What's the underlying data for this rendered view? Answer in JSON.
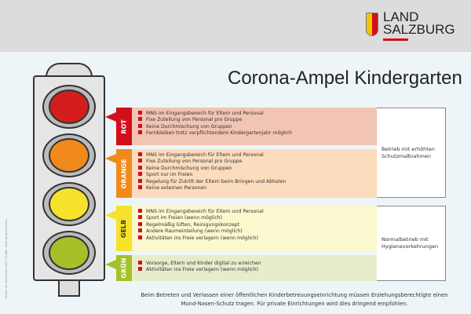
{
  "logo": {
    "line1": "LAND",
    "line2": "SALZBURG"
  },
  "title": "Corona-Ampel Kindergarten",
  "levels": [
    {
      "label": "ROT",
      "color": "#d10f1b",
      "bg": "#f2c4b3",
      "items": [
        "MNS im Eingangsbereich für Eltern und Personal",
        "Fixe Zuteilung von Personal pro Gruppe",
        "Keine Durchmischung von Gruppen",
        "Fernbleiben trotz verpflichtendem Kindergartenjahr möglich"
      ]
    },
    {
      "label": "ORANGE",
      "color": "#f08a1c",
      "bg": "#fbdcbd",
      "items": [
        "MNS im Eingangsbereich für Eltern und Personal",
        "Fixe Zuteilung von Personal pro Gruppe",
        "Keine Durchmischung von Gruppen",
        "Sport nur im Freien",
        "Regelung für Zutritt der Eltern beim Bringen und Abholen",
        "Keine externen Personen"
      ]
    },
    {
      "label": "GELB",
      "color": "#f6e22b",
      "bg": "#fbf7cf",
      "items": [
        "MNS im Eingangsbereich für Eltern und Personal",
        "Sport im Freien (wenn möglich)",
        "Regelmäßig lüften, Reinigungskonzept",
        "Andere Raumeinteilung (wenn möglich)",
        "Aktivitäten ins Freie verlagern (wenn möglich)"
      ]
    },
    {
      "label": "GRÜN",
      "color": "#a6c02a",
      "bg": "#e6edcb",
      "items": [
        "Vorsorge, Eltern und Kinder digital zu erreichen",
        "Aktivitäten ins Freie verlagern (wenn möglich)"
      ]
    }
  ],
  "side_notes": [
    "Betrieb mit erhöhten Schutzmaßnahmen",
    "Normalbetrieb mit Hygienevorkehrungen"
  ],
  "source": "Stand: 10. September 2020 | Grafik: Bildungsministerium",
  "footer": {
    "line1": "Beim Betreten und Verlassen einer öffentlichen Kinderbetreuungseinrichtung müssen Erziehungsberechtigte einen",
    "line2": "Mund-Nasen-Schutz tragen. Für private Einrichtungen wird dies dringend empfohlen."
  },
  "lamp_colors": [
    "#d41d1d",
    "#f08a1c",
    "#f6e22b",
    "#a6c02a"
  ]
}
